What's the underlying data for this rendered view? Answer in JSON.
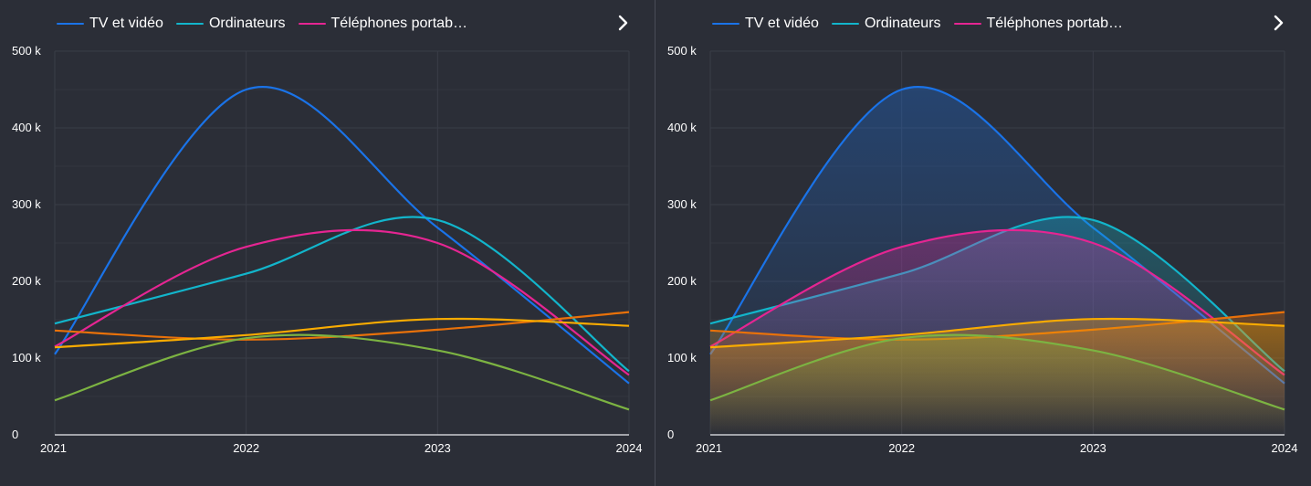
{
  "chart_data": [
    {
      "type": "line",
      "fill": false,
      "x": [
        "2021",
        "2022",
        "2023",
        "2024"
      ],
      "ylim": [
        0,
        500000
      ],
      "yticks": [
        "0",
        "100 k",
        "200 k",
        "300 k",
        "400 k",
        "500 k"
      ],
      "grid": true,
      "legend": {
        "placement": "top-left",
        "entries": [
          "TV et vidéo",
          "Ordinateurs",
          "Téléphones portab…"
        ],
        "next_icon": "chevron-right-icon"
      },
      "series": [
        {
          "name": "TV et vidéo",
          "color": "#1a73e8",
          "values": [
            105000,
            450000,
            270000,
            67000
          ]
        },
        {
          "name": "Ordinateurs",
          "color": "#12b5cb",
          "values": [
            145000,
            210000,
            280000,
            83000
          ]
        },
        {
          "name": "Téléphones portables",
          "color": "#e52592",
          "values": [
            115000,
            245000,
            250000,
            78000
          ]
        },
        {
          "color": "#e8710a",
          "values": [
            136000,
            124000,
            137000,
            160000
          ]
        },
        {
          "color": "#f9ab00",
          "values": [
            114000,
            130000,
            151000,
            142000
          ]
        },
        {
          "color": "#7cb342",
          "values": [
            45000,
            126000,
            110000,
            33000
          ]
        }
      ]
    },
    {
      "type": "area",
      "fill": true,
      "x": [
        "2021",
        "2022",
        "2023",
        "2024"
      ],
      "ylim": [
        0,
        500000
      ],
      "yticks": [
        "0",
        "100 k",
        "200 k",
        "300 k",
        "400 k",
        "500 k"
      ],
      "grid": true,
      "legend": {
        "placement": "top-left",
        "entries": [
          "TV et vidéo",
          "Ordinateurs",
          "Téléphones portab…"
        ],
        "next_icon": "chevron-right-icon"
      },
      "series": [
        {
          "name": "TV et vidéo",
          "color": "#1a73e8",
          "values": [
            105000,
            450000,
            270000,
            67000
          ]
        },
        {
          "name": "Ordinateurs",
          "color": "#12b5cb",
          "values": [
            145000,
            210000,
            280000,
            83000
          ]
        },
        {
          "name": "Téléphones portables",
          "color": "#e52592",
          "values": [
            115000,
            245000,
            250000,
            78000
          ]
        },
        {
          "color": "#e8710a",
          "values": [
            136000,
            124000,
            137000,
            160000
          ]
        },
        {
          "color": "#f9ab00",
          "values": [
            114000,
            130000,
            151000,
            142000
          ]
        },
        {
          "color": "#7cb342",
          "values": [
            45000,
            126000,
            110000,
            33000
          ]
        }
      ]
    }
  ]
}
